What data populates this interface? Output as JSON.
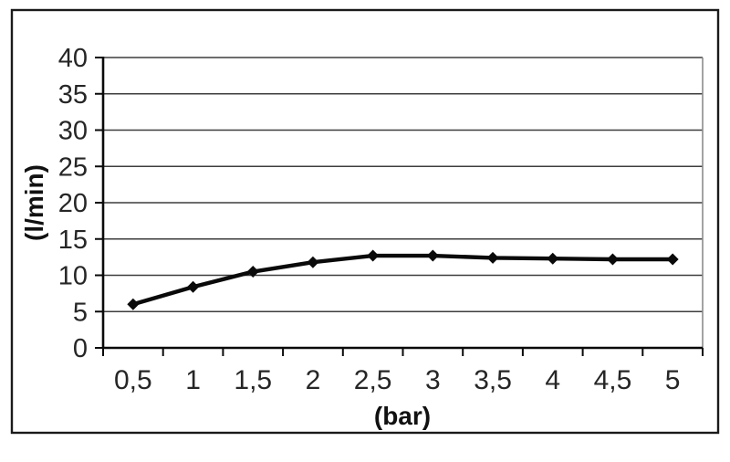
{
  "chart_data": {
    "type": "line",
    "title": "",
    "xlabel": "(bar)",
    "ylabel": "(l/min)",
    "x": [
      0.5,
      1,
      1.5,
      2,
      2.5,
      3,
      3.5,
      4,
      4.5,
      5
    ],
    "x_tick_labels": [
      "0,5",
      "1",
      "1,5",
      "2",
      "2,5",
      "3",
      "3,5",
      "4",
      "4,5",
      "5"
    ],
    "y_ticks": [
      0,
      5,
      10,
      15,
      20,
      25,
      30,
      35,
      40
    ],
    "ylim": [
      0,
      40
    ],
    "series": [
      {
        "values": [
          6,
          8.4,
          10.5,
          11.8,
          12.7,
          12.7,
          12.4,
          12.3,
          12.2,
          12.2
        ],
        "marker": "diamond",
        "color": "#0a0a0a",
        "line_width": 4.4
      }
    ],
    "grid": "horizontal",
    "legend": "none",
    "colors": {
      "grid_line": "#3d3d3d",
      "axis_line": "#0a0a0a",
      "plot_right_border": "#8c8c8c",
      "frame_border": "#1a1a1a",
      "tick_label": "#262626",
      "axis_title": "#111111",
      "background": "#ffffff"
    }
  }
}
